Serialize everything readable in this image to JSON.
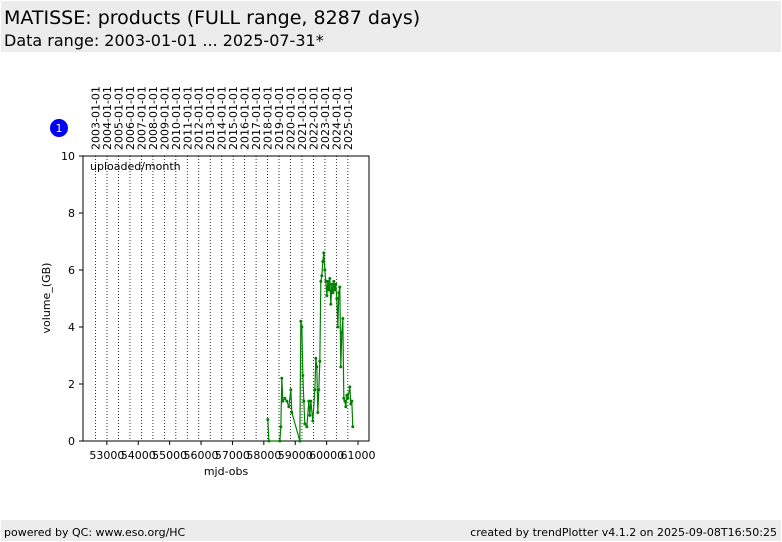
{
  "chart_data": {
    "type": "line",
    "title": "MATISSE: products (FULL range, 8287 days)",
    "subtitle": "Data range: 2003-01-01 ... 2025-07-31*",
    "annotation": "uploaded/month",
    "badge": "1",
    "x_label": "mjd-obs",
    "y_label": "volume_(GB)",
    "xlim": [
      52240,
      61350
    ],
    "ylim": [
      0,
      10
    ],
    "xticks": [
      53000,
      54000,
      55000,
      56000,
      57000,
      58000,
      59000,
      60000,
      61000
    ],
    "yticks": [
      0,
      2,
      4,
      6,
      8,
      10
    ],
    "year_markers": [
      {
        "value": 52640,
        "label": "2003-01-01"
      },
      {
        "value": 53005,
        "label": "2004-01-01"
      },
      {
        "value": 53371,
        "label": "2005-01-01"
      },
      {
        "value": 53736,
        "label": "2006-01-01"
      },
      {
        "value": 54101,
        "label": "2007-01-01"
      },
      {
        "value": 54466,
        "label": "2008-01-01"
      },
      {
        "value": 54832,
        "label": "2009-01-01"
      },
      {
        "value": 55197,
        "label": "2010-01-01"
      },
      {
        "value": 55562,
        "label": "2011-01-01"
      },
      {
        "value": 55927,
        "label": "2012-01-01"
      },
      {
        "value": 56293,
        "label": "2013-01-01"
      },
      {
        "value": 56658,
        "label": "2014-01-01"
      },
      {
        "value": 57023,
        "label": "2015-01-01"
      },
      {
        "value": 57388,
        "label": "2016-01-01"
      },
      {
        "value": 57754,
        "label": "2017-01-01"
      },
      {
        "value": 58119,
        "label": "2018-01-01"
      },
      {
        "value": 58484,
        "label": "2019-01-01"
      },
      {
        "value": 58849,
        "label": "2020-01-01"
      },
      {
        "value": 59215,
        "label": "2021-01-01"
      },
      {
        "value": 59580,
        "label": "2022-01-01"
      },
      {
        "value": 59945,
        "label": "2023-01-01"
      },
      {
        "value": 60310,
        "label": "2024-01-01"
      },
      {
        "value": 60676,
        "label": "2025-01-01"
      }
    ],
    "series": [
      {
        "color": "#008000",
        "x": [
          58128,
          58160,
          58510,
          58542,
          58573,
          58605,
          58669,
          58733,
          58797,
          58860,
          58892,
          59147,
          59179,
          59211,
          59243,
          59274,
          59306,
          59370,
          59434,
          59465,
          59497,
          59561,
          59625,
          59656,
          59688,
          59720,
          59752,
          59784,
          59816,
          59847,
          59879,
          59911,
          59943,
          59975,
          60007,
          60038,
          60070,
          60102,
          60134,
          60166,
          60198,
          60229,
          60261,
          60293,
          60325,
          60357,
          60389,
          60420,
          60452,
          60484,
          60516,
          60548,
          60580,
          60611,
          60643,
          60675,
          60739,
          60771,
          60803,
          60834
        ],
        "values": [
          0.75,
          0,
          0,
          0.5,
          2.2,
          1.4,
          1.5,
          1.4,
          1.2,
          1.8,
          1.0,
          0,
          4.2,
          4.0,
          2.3,
          1.4,
          0.6,
          0.5,
          1.4,
          0.9,
          1.4,
          0.7,
          1.8,
          2.9,
          2.6,
          1.0,
          1.8,
          2.8,
          5.6,
          5.8,
          6.3,
          6.6,
          6.0,
          5.6,
          5.1,
          5.6,
          5.3,
          5.7,
          4.8,
          5.5,
          5.2,
          5.6,
          5.3,
          5.5,
          5.0,
          4.0,
          5.2,
          5.4,
          2.6,
          3.8,
          4.3,
          1.5,
          1.4,
          1.2,
          1.6,
          1.5,
          1.9,
          1.3,
          1.4,
          0.5
        ]
      }
    ]
  },
  "footer": {
    "left": "powered by QC: www.eso.org/HC",
    "right": "created by trendPlotter v4.1.2 on 2025-09-08T16:50:25"
  }
}
